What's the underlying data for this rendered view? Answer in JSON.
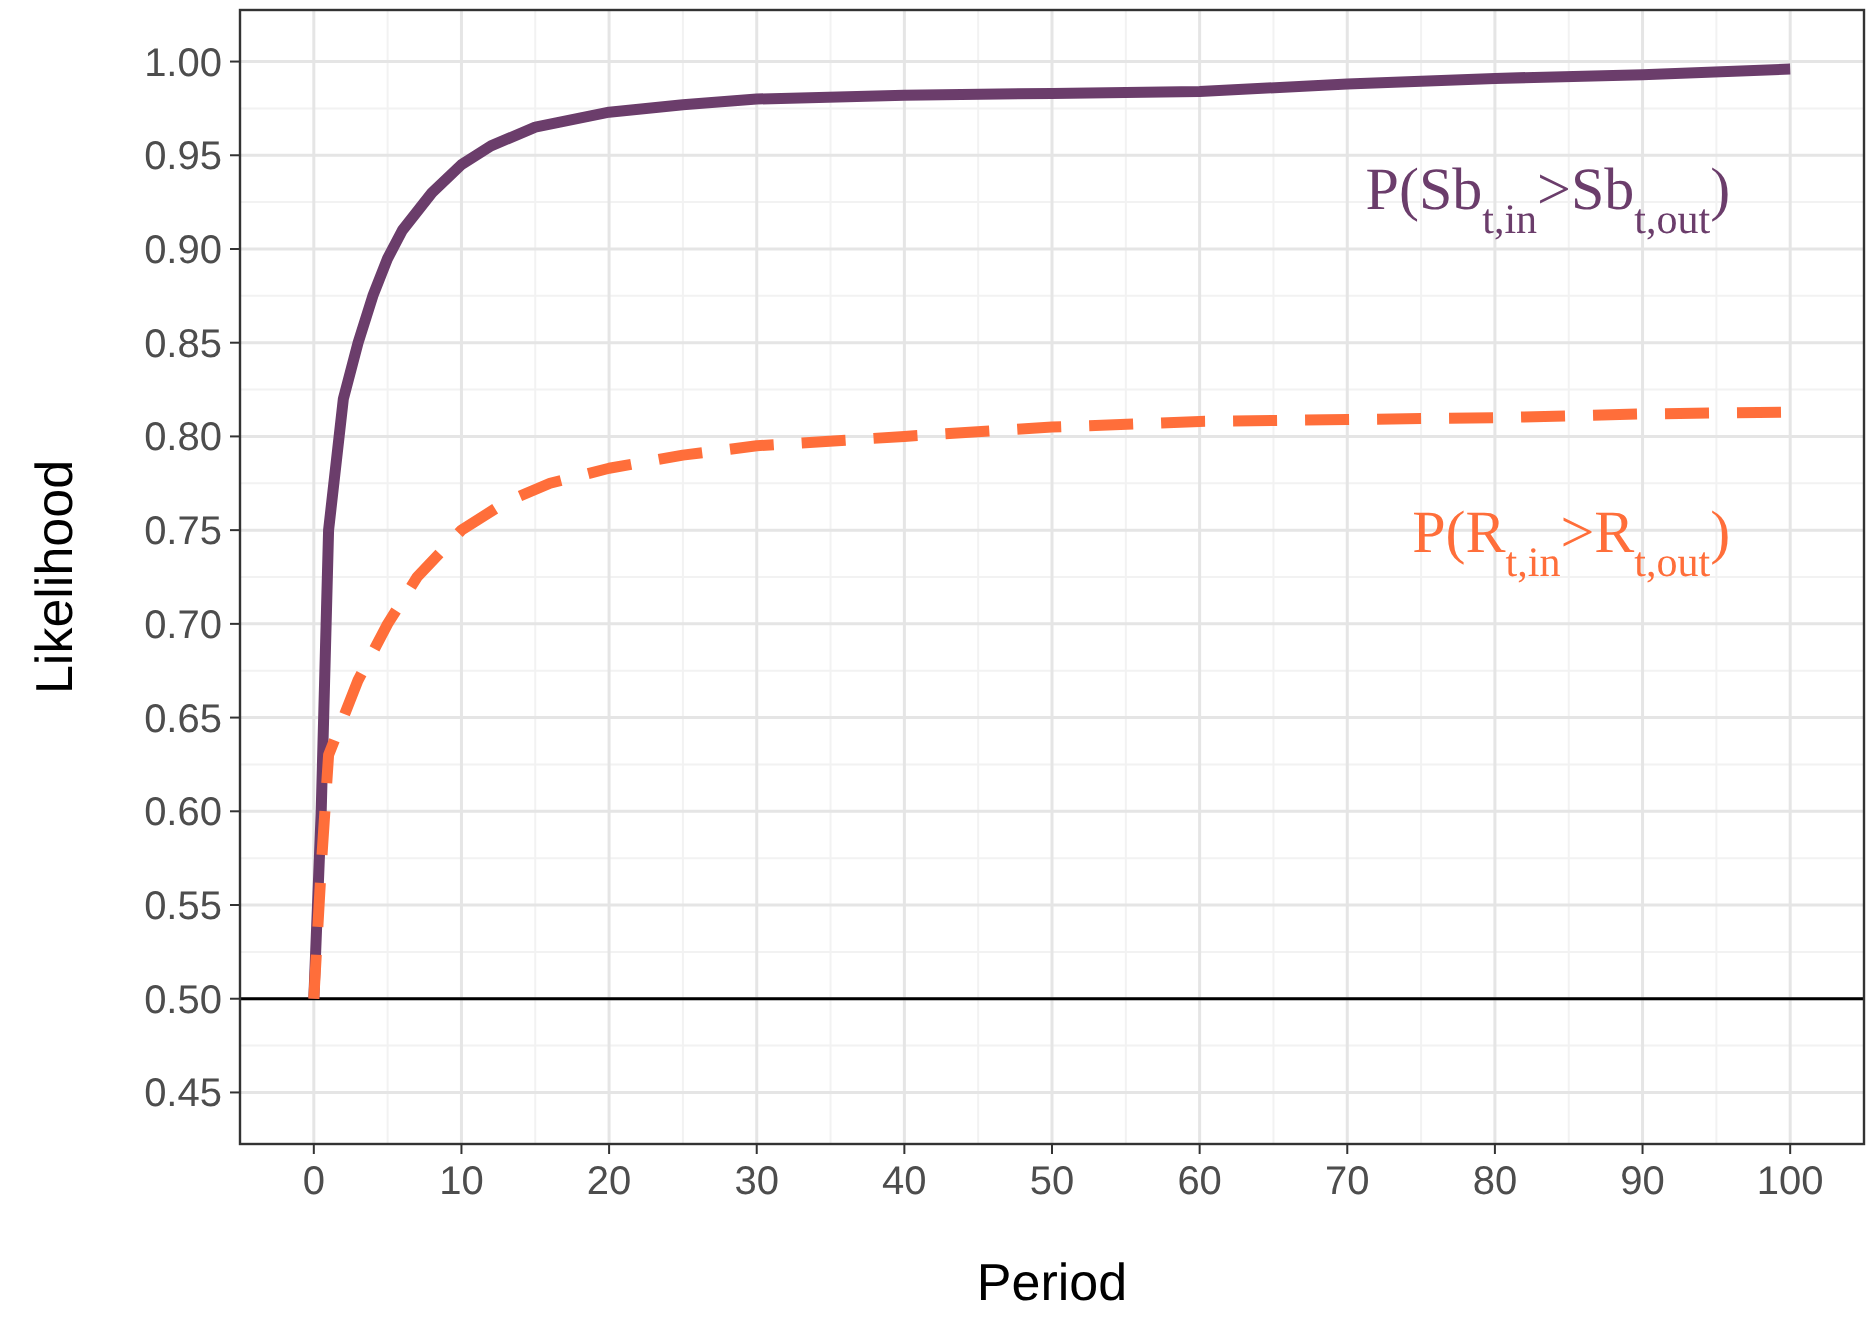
{
  "chart_data": {
    "type": "line",
    "xlabel": "Period",
    "ylabel": "Likelihood",
    "xlim": [
      -5,
      105
    ],
    "xticks": [
      0,
      10,
      20,
      30,
      40,
      50,
      60,
      70,
      80,
      90,
      100
    ],
    "ylim": [
      0.4225,
      1.0275
    ],
    "yticks": [
      0.45,
      {
        "value": 0.5,
        "label": "0.50"
      },
      0.55,
      {
        "value": 0.6,
        "label": "0.60"
      },
      0.65,
      {
        "value": 0.7,
        "label": "0.70"
      },
      0.75,
      {
        "value": 0.8,
        "label": "0.80"
      },
      0.85,
      {
        "value": 0.9,
        "label": "0.90"
      },
      0.95,
      {
        "value": 1,
        "label": "1.00"
      }
    ],
    "grid": true,
    "ref_lines": [
      {
        "axis": "y",
        "value": 0.5,
        "color": "#000000"
      }
    ],
    "series": [
      {
        "name": "P(Sb$_{t,in}$>Sb$_{t,out}$)",
        "color": "#6b3d6b",
        "line_style": "solid",
        "x": [
          0,
          0.5,
          1,
          2,
          3,
          4,
          5,
          6,
          7,
          8,
          10,
          12,
          15,
          20,
          25,
          30,
          40,
          50,
          60,
          70,
          80,
          90,
          100
        ],
        "values": [
          0.5,
          0.6,
          0.75,
          0.82,
          0.85,
          0.875,
          0.895,
          0.91,
          0.92,
          0.93,
          0.945,
          0.955,
          0.965,
          0.973,
          0.977,
          0.98,
          0.982,
          0.983,
          0.984,
          0.988,
          0.991,
          0.993,
          0.996
        ]
      },
      {
        "name": "P(R$_{t,in}$>R$_{t,out}$)",
        "color": "#ff6e3a",
        "line_style": "dashed",
        "x": [
          0,
          0.5,
          1,
          2,
          3,
          5,
          7,
          10,
          13,
          16,
          20,
          25,
          30,
          40,
          50,
          60,
          70,
          80,
          90,
          100
        ],
        "values": [
          0.5,
          0.57,
          0.63,
          0.65,
          0.67,
          0.7,
          0.725,
          0.75,
          0.765,
          0.775,
          0.783,
          0.79,
          0.795,
          0.8,
          0.805,
          0.808,
          0.809,
          0.81,
          0.812,
          0.813
        ]
      }
    ]
  }
}
